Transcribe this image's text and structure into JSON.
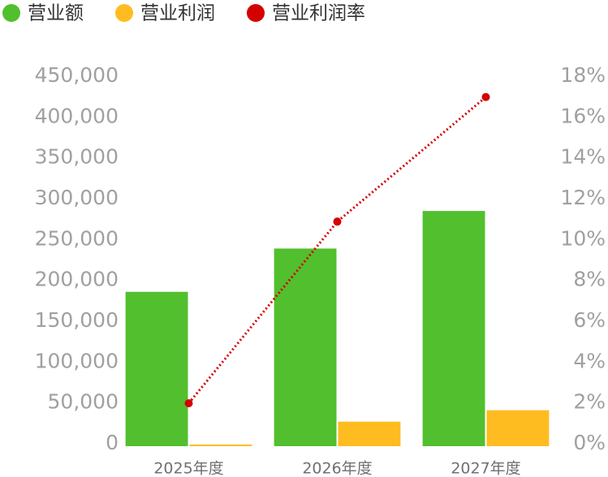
{
  "chart_data": {
    "type": "bar_line",
    "categories": [
      "2025年度",
      "2026年度",
      "2027年度"
    ],
    "series": [
      {
        "name": "营业额",
        "color": "#52bf2e",
        "values": [
          189000,
          242000,
          288000
        ]
      },
      {
        "name": "营业利润",
        "color": "#ffbc20",
        "values": [
          2000,
          30000,
          44000
        ]
      },
      {
        "name": "营业利润率",
        "color": "#d40000",
        "values": [
          2.1,
          11.0,
          17.1
        ],
        "axis": "y2"
      }
    ],
    "ylim": [
      0,
      450000
    ],
    "yticks": [
      0,
      {
        "value": 50000,
        "label": "50,000"
      },
      {
        "value": 100000,
        "label": "100,000"
      },
      {
        "value": 150000,
        "label": "150,000"
      },
      {
        "value": 200000,
        "label": "200,000"
      },
      {
        "value": 250000,
        "label": "250,000"
      },
      {
        "value": 300000,
        "label": "300,000"
      },
      {
        "value": 350000,
        "label": "350,000"
      },
      {
        "value": 400000,
        "label": "400,000"
      },
      {
        "value": 450000,
        "label": "450,000"
      }
    ],
    "y2lim": [
      0,
      18
    ],
    "y2ticks": [
      {
        "value": 0,
        "label": "0%"
      },
      {
        "value": 2,
        "label": "2%"
      },
      {
        "value": 4,
        "label": "4%"
      },
      {
        "value": 6,
        "label": "6%"
      },
      {
        "value": 8,
        "label": "8%"
      },
      {
        "value": 10,
        "label": "10%"
      },
      {
        "value": 12,
        "label": "12%"
      },
      {
        "value": 14,
        "label": "14%"
      },
      {
        "value": 16,
        "label": "16%"
      },
      {
        "value": 18,
        "label": "18%"
      }
    ],
    "legend": "top-left"
  }
}
